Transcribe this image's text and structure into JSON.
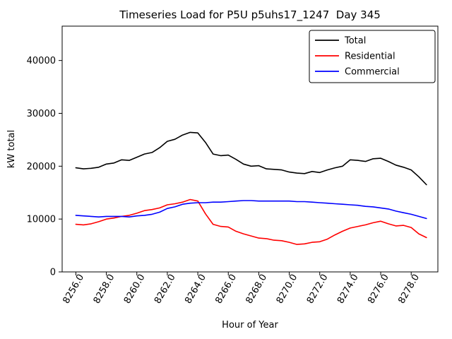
{
  "figure": {
    "background": "#ffffff"
  },
  "chart_data": {
    "type": "line",
    "title": "Timeseries Load for P5U p5uhs17_1247  Day 345",
    "xlabel": "Hour of Year",
    "ylabel": "kW total",
    "xlim": [
      8255.1,
      8279.75
    ],
    "ylim": [
      0,
      46500
    ],
    "xticks": [
      8256,
      8258,
      8260,
      8262,
      8264,
      8266,
      8268,
      8270,
      8272,
      8274,
      8276,
      8278
    ],
    "xtick_labels": [
      "8256.0",
      "8258.0",
      "8260.0",
      "8262.0",
      "8264.0",
      "8266.0",
      "8268.0",
      "8270.0",
      "8272.0",
      "8274.0",
      "8276.0",
      "8278.0"
    ],
    "yticks": [
      0,
      10000,
      20000,
      30000,
      40000
    ],
    "ytick_labels": [
      "0",
      "10000",
      "20000",
      "30000",
      "40000"
    ],
    "grid": false,
    "legend": {
      "position": "upper right",
      "entries": [
        "Total",
        "Residential",
        "Commercial"
      ]
    },
    "x": [
      8256,
      8256.5,
      8257,
      8257.5,
      8258,
      8258.5,
      8259,
      8259.5,
      8260,
      8260.5,
      8261,
      8261.5,
      8262,
      8262.5,
      8263,
      8263.5,
      8264,
      8264.5,
      8265,
      8265.5,
      8266,
      8266.5,
      8267,
      8267.5,
      8268,
      8268.5,
      8269,
      8269.5,
      8270,
      8270.5,
      8271,
      8271.5,
      8272,
      8272.5,
      8273,
      8273.5,
      8274,
      8274.5,
      8275,
      8275.5,
      8276,
      8276.5,
      8277,
      8277.5,
      8278,
      8278.5,
      8279
    ],
    "series": [
      {
        "name": "Total",
        "color": "#000000",
        "values": [
          19700,
          19500,
          19600,
          19800,
          20400,
          20600,
          21200,
          21100,
          21700,
          22300,
          22600,
          23500,
          24700,
          25100,
          25900,
          26400,
          26300,
          24500,
          22300,
          22000,
          22100,
          21300,
          20400,
          20000,
          20100,
          19500,
          19400,
          19300,
          18900,
          18700,
          18600,
          19000,
          18800,
          19300,
          19700,
          20000,
          21200,
          21100,
          20900,
          21400,
          21500,
          20900,
          20200,
          19800,
          19300,
          18000,
          16500
        ]
      },
      {
        "name": "Residential",
        "color": "#ff0000",
        "values": [
          9000,
          8900,
          9100,
          9500,
          10000,
          10200,
          10500,
          10700,
          11100,
          11600,
          11800,
          12100,
          12700,
          12900,
          13200,
          13700,
          13400,
          11000,
          9000,
          8600,
          8500,
          7700,
          7200,
          6800,
          6400,
          6300,
          6000,
          5900,
          5600,
          5200,
          5300,
          5600,
          5700,
          6200,
          7000,
          7700,
          8300,
          8600,
          8900,
          9300,
          9600,
          9100,
          8700,
          8800,
          8400,
          7200,
          6500
        ]
      },
      {
        "name": "Commercial",
        "color": "#0000ff",
        "values": [
          10700,
          10600,
          10500,
          10400,
          10500,
          10500,
          10500,
          10400,
          10600,
          10700,
          10900,
          11300,
          12000,
          12300,
          12800,
          13000,
          13100,
          13100,
          13200,
          13200,
          13300,
          13400,
          13500,
          13500,
          13400,
          13400,
          13400,
          13400,
          13400,
          13300,
          13300,
          13200,
          13100,
          13000,
          12900,
          12800,
          12700,
          12600,
          12400,
          12300,
          12100,
          11900,
          11500,
          11200,
          10900,
          10500,
          10100
        ]
      }
    ]
  }
}
